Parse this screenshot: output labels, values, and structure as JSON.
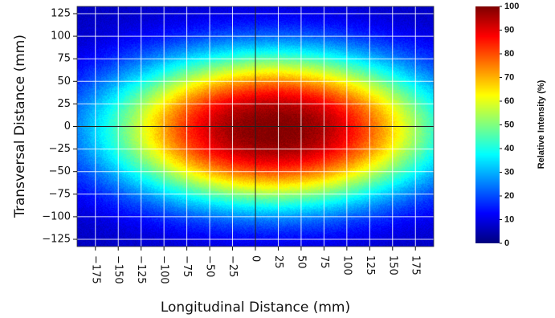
{
  "chart_data": {
    "type": "heatmap",
    "title": "",
    "xlabel": "Longitudinal Distance (mm)",
    "ylabel": "Transversal Distance (mm)",
    "xlim": [
      -195,
      195
    ],
    "ylim": [
      -133,
      133
    ],
    "x_ticks": [
      -175,
      -150,
      -125,
      -100,
      -75,
      -50,
      -25,
      0,
      25,
      50,
      75,
      100,
      125,
      150,
      175
    ],
    "y_ticks": [
      -125,
      -100,
      -75,
      -50,
      -25,
      0,
      25,
      50,
      75,
      100,
      125
    ],
    "x_tick_labels": [
      "−175",
      "−150",
      "−125",
      "−100",
      "−75",
      "−50",
      "−25",
      "0",
      "25",
      "50",
      "75",
      "100",
      "125",
      "150",
      "175"
    ],
    "y_tick_labels": [
      "−125",
      "−100",
      "−75",
      "−50",
      "−25",
      "0",
      "25",
      "50",
      "75",
      "100",
      "125"
    ],
    "grid": true,
    "crosshair": {
      "x": 0,
      "y": 0
    },
    "intensity_distribution": {
      "center_x": 20,
      "center_y": -3,
      "half_width_x_at_50pct": 155,
      "half_width_y_at_50pct": 72,
      "peak_percent": 100
    },
    "colorbar": {
      "label": "Relative Intensity (%)",
      "min": 0,
      "max": 100,
      "ticks": [
        0,
        10,
        20,
        30,
        40,
        50,
        60,
        70,
        80,
        90,
        100
      ],
      "tick_labels": [
        "0",
        "10",
        "20",
        "30",
        "40",
        "50",
        "60",
        "70",
        "80",
        "90",
        "100"
      ],
      "colormap": "jet"
    }
  }
}
